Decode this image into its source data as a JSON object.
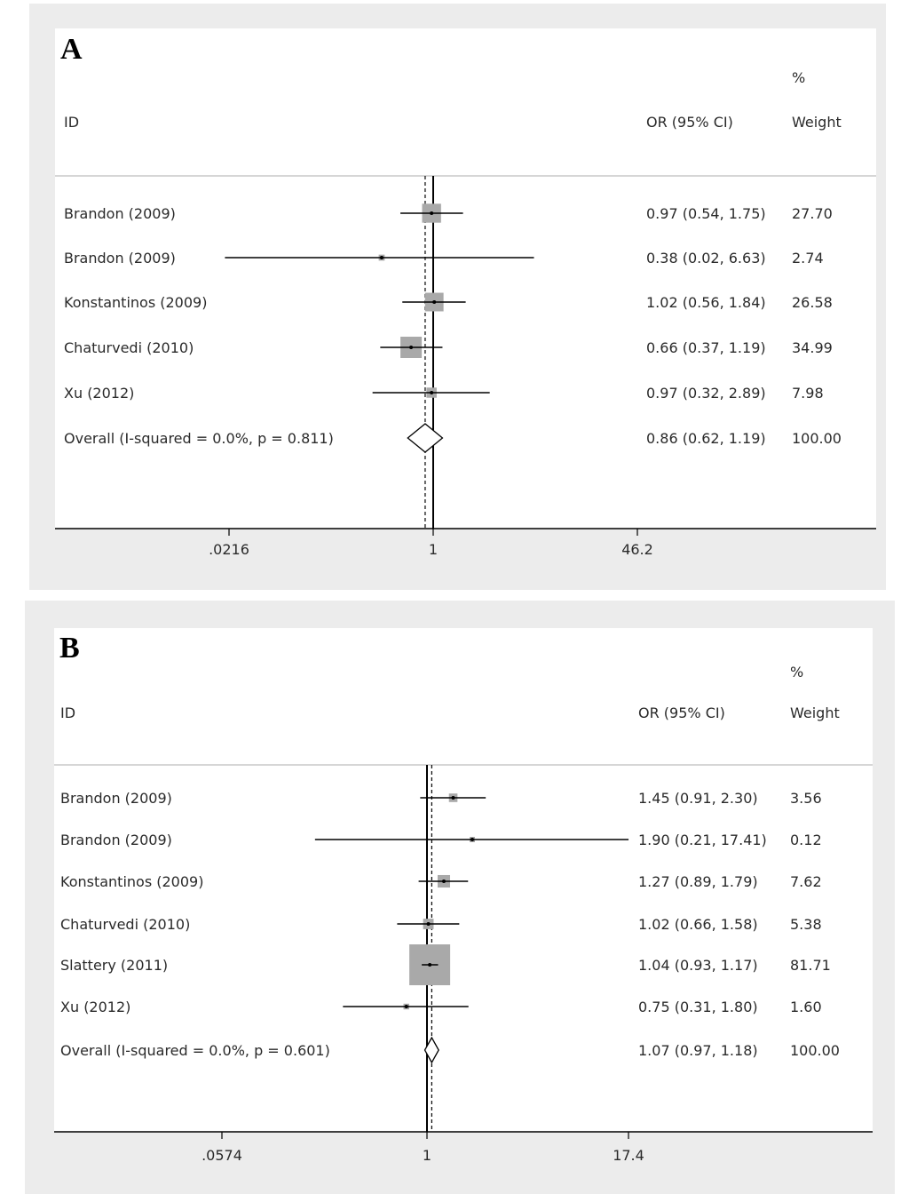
{
  "chart_data": [
    {
      "type": "forest",
      "panel_label": "A",
      "x_scale": "log",
      "x_ticks": [
        {
          "value": 0.0216,
          "label": ".0216"
        },
        {
          "value": 1,
          "label": "1"
        },
        {
          "value": 46.2,
          "label": "46.2"
        }
      ],
      "xlim": [
        0.0216,
        46.2
      ],
      "columns": {
        "id": "ID",
        "effect": "OR (95% CI)",
        "weight_top": "%",
        "weight": "Weight"
      },
      "pooled_line": 0.86,
      "studies": [
        {
          "id": "Brandon (2009)",
          "or": 0.97,
          "lo": 0.54,
          "hi": 1.75,
          "or_text": "0.97 (0.54, 1.75)",
          "weight": 27.7,
          "weight_text": "27.70"
        },
        {
          "id": "Brandon (2009)",
          "or": 0.38,
          "lo": 0.02,
          "hi": 6.63,
          "or_text": "0.38 (0.02, 6.63)",
          "weight": 2.74,
          "weight_text": "2.74"
        },
        {
          "id": "Konstantinos (2009)",
          "or": 1.02,
          "lo": 0.56,
          "hi": 1.84,
          "or_text": "1.02 (0.56, 1.84)",
          "weight": 26.58,
          "weight_text": "26.58"
        },
        {
          "id": "Chaturvedi (2010)",
          "or": 0.66,
          "lo": 0.37,
          "hi": 1.19,
          "or_text": "0.66 (0.37, 1.19)",
          "weight": 34.99,
          "weight_text": "34.99"
        },
        {
          "id": "Xu (2012)",
          "or": 0.97,
          "lo": 0.32,
          "hi": 2.89,
          "or_text": "0.97 (0.32, 2.89)",
          "weight": 7.98,
          "weight_text": "7.98"
        }
      ],
      "overall": {
        "id": "Overall  (I-squared = 0.0%, p = 0.811)",
        "or": 0.86,
        "lo": 0.62,
        "hi": 1.19,
        "or_text": "0.86 (0.62, 1.19)",
        "weight_text": "100.00"
      }
    },
    {
      "type": "forest",
      "panel_label": "B",
      "x_scale": "log",
      "x_ticks": [
        {
          "value": 0.0574,
          "label": ".0574"
        },
        {
          "value": 1,
          "label": "1"
        },
        {
          "value": 17.4,
          "label": "17.4"
        }
      ],
      "xlim": [
        0.0574,
        17.4
      ],
      "columns": {
        "id": "ID",
        "effect": "OR (95% CI)",
        "weight_top": "%",
        "weight": "Weight"
      },
      "pooled_line": 1.07,
      "studies": [
        {
          "id": "Brandon (2009)",
          "or": 1.45,
          "lo": 0.91,
          "hi": 2.3,
          "or_text": "1.45 (0.91, 2.30)",
          "weight": 3.56,
          "weight_text": "3.56"
        },
        {
          "id": "Brandon (2009)",
          "or": 1.9,
          "lo": 0.21,
          "hi": 17.41,
          "or_text": "1.90 (0.21, 17.41)",
          "weight": 0.12,
          "weight_text": "0.12"
        },
        {
          "id": "Konstantinos (2009)",
          "or": 1.27,
          "lo": 0.89,
          "hi": 1.79,
          "or_text": "1.27 (0.89, 1.79)",
          "weight": 7.62,
          "weight_text": "7.62"
        },
        {
          "id": "Chaturvedi (2010)",
          "or": 1.02,
          "lo": 0.66,
          "hi": 1.58,
          "or_text": "1.02 (0.66, 1.58)",
          "weight": 5.38,
          "weight_text": "5.38"
        },
        {
          "id": "Slattery (2011)",
          "or": 1.04,
          "lo": 0.93,
          "hi": 1.17,
          "or_text": "1.04 (0.93, 1.17)",
          "weight": 81.71,
          "weight_text": "81.71"
        },
        {
          "id": "Xu (2012)",
          "or": 0.75,
          "lo": 0.31,
          "hi": 1.8,
          "or_text": "0.75 (0.31, 1.80)",
          "weight": 1.6,
          "weight_text": "1.60"
        }
      ],
      "overall": {
        "id": "Overall  (I-squared = 0.0%, p = 0.601)",
        "or": 1.07,
        "lo": 0.97,
        "hi": 1.18,
        "or_text": "1.07 (0.97, 1.18)",
        "weight_text": "100.00"
      }
    }
  ]
}
